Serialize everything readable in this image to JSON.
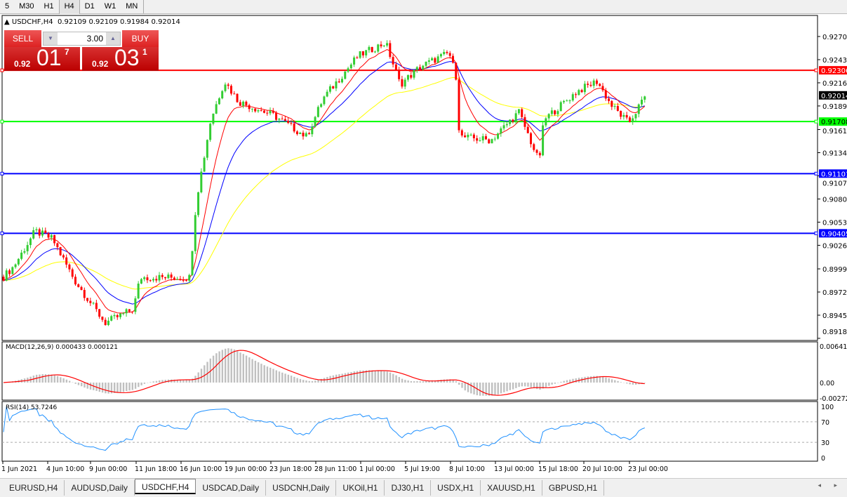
{
  "timeframes": [
    {
      "label": "5"
    },
    {
      "label": "M30"
    },
    {
      "label": "H1"
    },
    {
      "label": "H4",
      "active": true
    },
    {
      "label": "D1"
    },
    {
      "label": "W1"
    },
    {
      "label": "MN"
    }
  ],
  "chart_header": {
    "symbol": "USDCHF,H4",
    "ohlc": "0.92109 0.92109 0.91984 0.92014"
  },
  "trade_panel": {
    "sell_label": "SELL",
    "buy_label": "BUY",
    "lot": "3.00",
    "bid": {
      "prefix": "0.92",
      "big": "01",
      "sup": "7"
    },
    "ask": {
      "prefix": "0.92",
      "big": "03",
      "sup": "1"
    }
  },
  "macd_label": "MACD(12,26,9) 0.000433 0.000121",
  "rsi_label": "RSI(14) 53.7246",
  "colors": {
    "bull": "#32cd32",
    "bear": "#ff0000",
    "ma_fast": "#ff0000",
    "ma_mid": "#0000ff",
    "ma_slow": "#ffff00",
    "macd_hist": "#c0c0c0",
    "macd_signal": "#ff0000",
    "rsi": "#1e90ff"
  },
  "chart_data": {
    "type": "candlestick",
    "price_ticks": [
      "0.92700",
      "0.92430",
      "0.92160",
      "0.91890",
      "0.91615",
      "0.91345",
      "0.91075",
      "0.90805",
      "0.90535",
      "0.90265",
      "0.89990",
      "0.89720",
      "0.89450",
      "0.89180"
    ],
    "current_price": "0.92014",
    "hlines": [
      {
        "price": "0.92306",
        "color": "#ff0000"
      },
      {
        "price": "0.91708",
        "color": "#00ff00"
      },
      {
        "price": "0.91101",
        "color": "#0000ff"
      },
      {
        "price": "0.90405",
        "color": "#0000ff"
      }
    ],
    "time_ticks": [
      {
        "label": "1 Jun 2021",
        "t": "2021-06-01T00:00"
      },
      {
        "label": "4 Jun 10:00",
        "t": "2021-06-04T10:00"
      },
      {
        "label": "9 Jun 00:00",
        "t": "2021-06-09T00:00"
      },
      {
        "label": "11 Jun 18:00",
        "t": "2021-06-11T18:00"
      },
      {
        "label": "16 Jun 10:00",
        "t": "2021-06-16T10:00"
      },
      {
        "label": "19 Jun 00:00",
        "t": "2021-06-19T00:00"
      },
      {
        "label": "23 Jun 18:00",
        "t": "2021-06-23T18:00"
      },
      {
        "label": "28 Jun 11:00",
        "t": "2021-06-28T11:00"
      },
      {
        "label": "1 Jul 00:00",
        "t": "2021-07-01T00:00"
      },
      {
        "label": "5 Jul 19:00",
        "t": "2021-07-05T19:00"
      },
      {
        "label": "8 Jul 10:00",
        "t": "2021-07-08T10:00"
      },
      {
        "label": "13 Jul 00:00",
        "t": "2021-07-13T00:00"
      },
      {
        "label": "15 Jul 18:00",
        "t": "2021-07-15T18:00"
      },
      {
        "label": "20 Jul 10:00",
        "t": "2021-07-20T10:00"
      },
      {
        "label": "23 Jul 00:00",
        "t": "2021-07-23T00:00"
      }
    ],
    "price_path": [
      {
        "t": "2021-06-01T00:00",
        "c": 0.8989
      },
      {
        "t": "2021-06-01T20:00",
        "c": 0.9002
      },
      {
        "t": "2021-06-03T11:00",
        "c": 0.9043
      },
      {
        "t": "2021-06-04T22:00",
        "c": 0.9034
      },
      {
        "t": "2021-06-07T08:00",
        "c": 0.8985
      },
      {
        "t": "2021-06-09T21:00",
        "c": 0.8936
      },
      {
        "t": "2021-06-11T14:00",
        "c": 0.8952
      },
      {
        "t": "2021-06-12T04:00",
        "c": 0.8989
      },
      {
        "t": "2021-06-16T22:00",
        "c": 0.8989
      },
      {
        "t": "2021-06-17T07:00",
        "c": 0.9079
      },
      {
        "t": "2021-06-18T03:00",
        "c": 0.9173
      },
      {
        "t": "2021-06-18T22:00",
        "c": 0.9218
      },
      {
        "t": "2021-06-20T08:00",
        "c": 0.9194
      },
      {
        "t": "2021-06-24T01:00",
        "c": 0.9178
      },
      {
        "t": "2021-06-27T12:00",
        "c": 0.9153
      },
      {
        "t": "2021-06-28T21:00",
        "c": 0.9198
      },
      {
        "t": "2021-06-30T20:00",
        "c": 0.9247
      },
      {
        "t": "2021-07-03T16:00",
        "c": 0.9263
      },
      {
        "t": "2021-07-05T05:00",
        "c": 0.9214
      },
      {
        "t": "2021-07-06T16:00",
        "c": 0.9235
      },
      {
        "t": "2021-07-08T08:00",
        "c": 0.9251
      },
      {
        "t": "2021-07-09T00:00",
        "c": 0.9223
      },
      {
        "t": "2021-07-09T08:00",
        "c": 0.9153
      },
      {
        "t": "2021-07-12T13:00",
        "c": 0.9149
      },
      {
        "t": "2021-07-14T11:00",
        "c": 0.9182
      },
      {
        "t": "2021-07-15T17:00",
        "c": 0.9124
      },
      {
        "t": "2021-07-16T05:00",
        "c": 0.9173
      },
      {
        "t": "2021-07-19T17:00",
        "c": 0.9206
      },
      {
        "t": "2021-07-21T04:00",
        "c": 0.9218
      },
      {
        "t": "2021-07-21T23:00",
        "c": 0.919
      },
      {
        "t": "2021-07-22T23:00",
        "c": 0.9169
      },
      {
        "t": "2021-07-23T22:00",
        "c": 0.9201
      }
    ],
    "macd_ticks": [
      "0.006413",
      "0.00",
      "-0.002724"
    ],
    "macd_range": [
      -0.002724,
      0.006413
    ],
    "rsi_ticks": [
      "100",
      "70",
      "30",
      "0"
    ],
    "rsi_levels": [
      70,
      30
    ]
  },
  "tabs": [
    {
      "label": "EURUSD,H4"
    },
    {
      "label": "AUDUSD,Daily"
    },
    {
      "label": "USDCHF,H4",
      "active": true
    },
    {
      "label": "USDCAD,Daily"
    },
    {
      "label": "USDCNH,Daily"
    },
    {
      "label": "UKOil,H1"
    },
    {
      "label": "DJ30,H1"
    },
    {
      "label": "USDX,H1"
    },
    {
      "label": "XAUUSD,H1"
    },
    {
      "label": "GBPUSD,H1"
    }
  ],
  "tab_scroll": "◂ ▸"
}
